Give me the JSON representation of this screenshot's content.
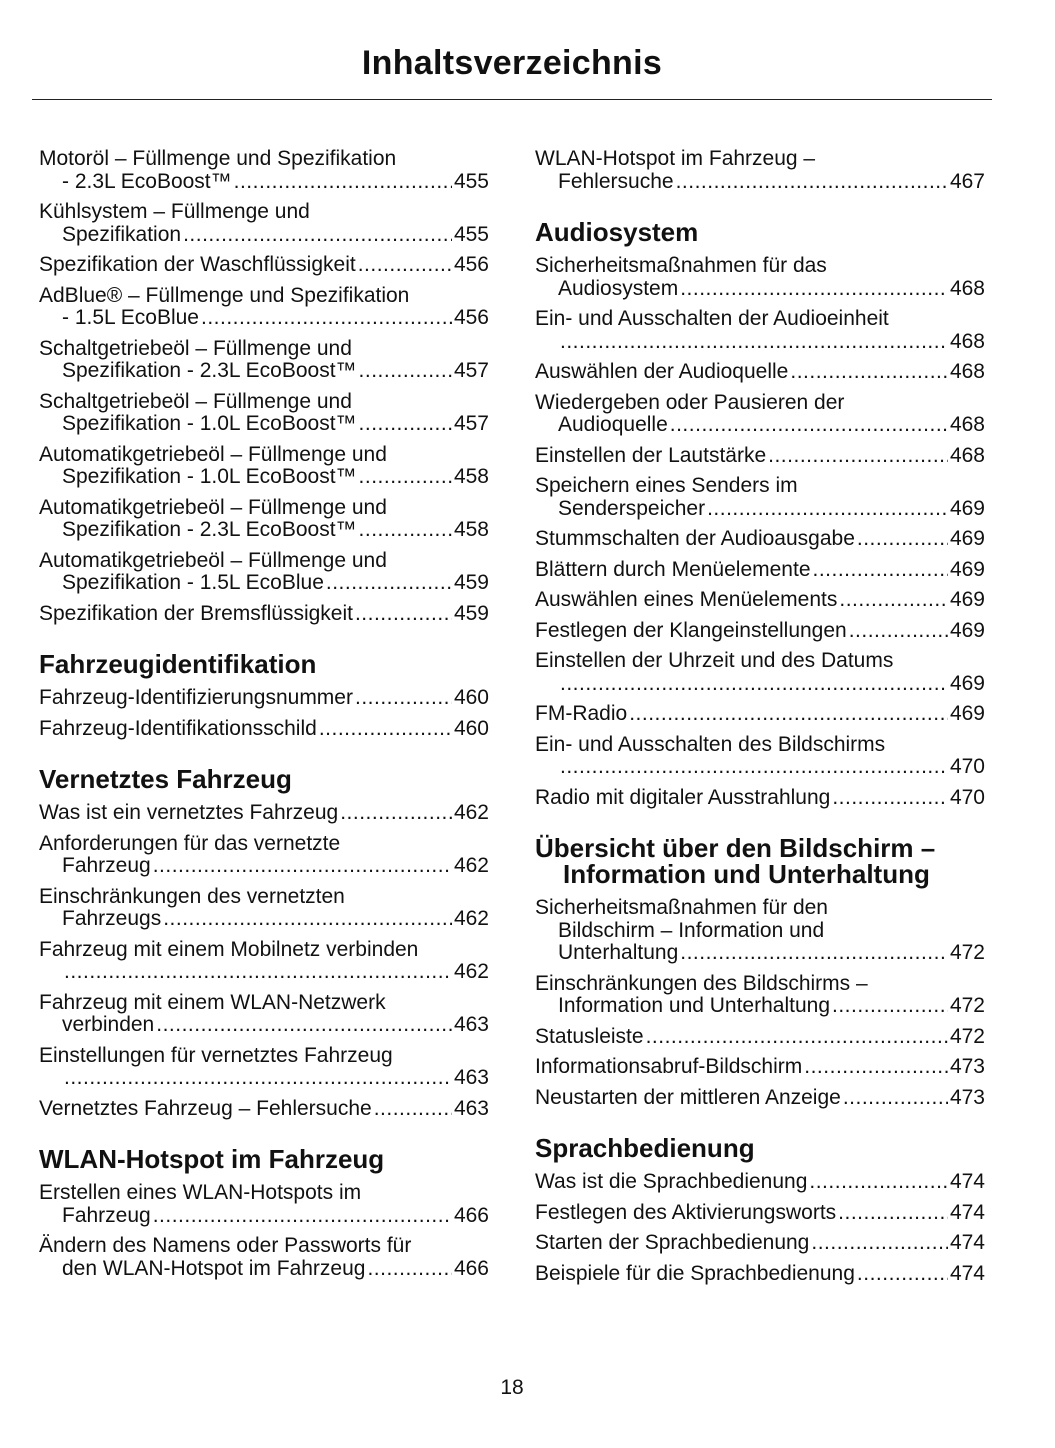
{
  "title": "Inhaltsverzeichnis",
  "page_number": "18",
  "columns": [
    [
      {
        "type": "entry",
        "lines": [
          "Motoröl – Füllmenge und Spezifikation",
          "- 2.3L EcoBoost™"
        ],
        "page": "455"
      },
      {
        "type": "entry",
        "lines": [
          "Kühlsystem – Füllmenge und",
          "Spezifikation"
        ],
        "page": "455"
      },
      {
        "type": "entry",
        "lines": [
          "Spezifikation der Waschflüssigkeit"
        ],
        "page": "456"
      },
      {
        "type": "entry",
        "lines": [
          "AdBlue® – Füllmenge und Spezifikation",
          "- 1.5L EcoBlue"
        ],
        "page": "456"
      },
      {
        "type": "entry",
        "lines": [
          "Schaltgetriebeöl – Füllmenge und",
          "Spezifikation - 2.3L EcoBoost™"
        ],
        "page": "457"
      },
      {
        "type": "entry",
        "lines": [
          "Schaltgetriebeöl – Füllmenge und",
          "Spezifikation - 1.0L EcoBoost™"
        ],
        "page": "457"
      },
      {
        "type": "entry",
        "lines": [
          "Automatikgetriebeöl – Füllmenge und",
          "Spezifikation - 1.0L EcoBoost™"
        ],
        "page": "458"
      },
      {
        "type": "entry",
        "lines": [
          "Automatikgetriebeöl – Füllmenge und",
          "Spezifikation - 2.3L EcoBoost™"
        ],
        "page": "458"
      },
      {
        "type": "entry",
        "lines": [
          "Automatikgetriebeöl – Füllmenge und",
          "Spezifikation - 1.5L EcoBlue"
        ],
        "page": "459"
      },
      {
        "type": "entry",
        "lines": [
          "Spezifikation der Bremsflüssigkeit"
        ],
        "page": "459"
      },
      {
        "type": "heading",
        "text": "Fahrzeugidentifikation"
      },
      {
        "type": "entry",
        "lines": [
          "Fahrzeug-Identifizierungsnummer"
        ],
        "page": "460"
      },
      {
        "type": "entry",
        "lines": [
          "Fahrzeug-Identifikationsschild"
        ],
        "page": "460"
      },
      {
        "type": "heading",
        "text": "Vernetztes Fahrzeug"
      },
      {
        "type": "entry",
        "lines": [
          "Was ist ein vernetztes Fahrzeug"
        ],
        "page": "462"
      },
      {
        "type": "entry",
        "lines": [
          "Anforderungen für das vernetzte",
          "Fahrzeug"
        ],
        "page": "462"
      },
      {
        "type": "entry",
        "lines": [
          "Einschränkungen des vernetzten",
          "Fahrzeugs"
        ],
        "page": "462"
      },
      {
        "type": "entry",
        "lines": [
          "Fahrzeug mit einem Mobilnetz verbinden",
          ""
        ],
        "page": "462"
      },
      {
        "type": "entry",
        "lines": [
          "Fahrzeug mit einem WLAN-Netzwerk",
          "verbinden"
        ],
        "page": "463"
      },
      {
        "type": "entry",
        "lines": [
          "Einstellungen für vernetztes Fahrzeug",
          ""
        ],
        "page": "463"
      },
      {
        "type": "entry",
        "lines": [
          "Vernetztes Fahrzeug – Fehlersuche"
        ],
        "page": "463"
      },
      {
        "type": "heading",
        "text": "WLAN-Hotspot im Fahrzeug"
      },
      {
        "type": "entry",
        "lines": [
          "Erstellen eines WLAN-Hotspots im",
          "Fahrzeug"
        ],
        "page": "466"
      },
      {
        "type": "entry",
        "lines": [
          "Ändern des Namens oder Passworts für",
          "den WLAN-Hotspot im Fahrzeug"
        ],
        "page": "466"
      }
    ],
    [
      {
        "type": "entry",
        "lines": [
          "WLAN-Hotspot im Fahrzeug –",
          "Fehlersuche"
        ],
        "page": "467"
      },
      {
        "type": "heading",
        "text": "Audiosystem"
      },
      {
        "type": "entry",
        "lines": [
          "Sicherheitsmaßnahmen für das",
          "Audiosystem"
        ],
        "page": "468"
      },
      {
        "type": "entry",
        "lines": [
          "Ein- und Ausschalten der Audioeinheit",
          ""
        ],
        "page": "468"
      },
      {
        "type": "entry",
        "lines": [
          "Auswählen der Audioquelle"
        ],
        "page": "468"
      },
      {
        "type": "entry",
        "lines": [
          "Wiedergeben oder Pausieren der",
          "Audioquelle"
        ],
        "page": "468"
      },
      {
        "type": "entry",
        "lines": [
          "Einstellen der Lautstärke"
        ],
        "page": "468"
      },
      {
        "type": "entry",
        "lines": [
          "Speichern eines Senders im",
          "Senderspeicher"
        ],
        "page": "469"
      },
      {
        "type": "entry",
        "lines": [
          "Stummschalten der Audioausgabe"
        ],
        "page": "469"
      },
      {
        "type": "entry",
        "lines": [
          "Blättern durch Menüelemente"
        ],
        "page": "469"
      },
      {
        "type": "entry",
        "lines": [
          "Auswählen eines Menüelements"
        ],
        "page": "469"
      },
      {
        "type": "entry",
        "lines": [
          "Festlegen der Klangeinstellungen"
        ],
        "page": "469"
      },
      {
        "type": "entry",
        "lines": [
          "Einstellen der Uhrzeit und des Datums",
          ""
        ],
        "page": "469"
      },
      {
        "type": "entry",
        "lines": [
          "FM-Radio"
        ],
        "page": "469"
      },
      {
        "type": "entry",
        "lines": [
          "Ein- und Ausschalten des Bildschirms",
          ""
        ],
        "page": "470"
      },
      {
        "type": "entry",
        "lines": [
          "Radio mit digitaler Ausstrahlung"
        ],
        "page": "470"
      },
      {
        "type": "heading",
        "text": "Übersicht über den Bildschirm – Information und Unterhaltung"
      },
      {
        "type": "entry",
        "lines": [
          "Sicherheitsmaßnahmen für den",
          "Bildschirm – Information und",
          "Unterhaltung"
        ],
        "page": "472"
      },
      {
        "type": "entry",
        "lines": [
          "Einschränkungen des Bildschirms –",
          "Information und Unterhaltung"
        ],
        "page": "472"
      },
      {
        "type": "entry",
        "lines": [
          "Statusleiste"
        ],
        "page": "472"
      },
      {
        "type": "entry",
        "lines": [
          "Informationsabruf-Bildschirm"
        ],
        "page": "473"
      },
      {
        "type": "entry",
        "lines": [
          "Neustarten der mittleren Anzeige"
        ],
        "page": "473"
      },
      {
        "type": "heading",
        "text": "Sprachbedienung"
      },
      {
        "type": "entry",
        "lines": [
          "Was ist die Sprachbedienung"
        ],
        "page": "474"
      },
      {
        "type": "entry",
        "lines": [
          "Festlegen des Aktivierungsworts"
        ],
        "page": "474"
      },
      {
        "type": "entry",
        "lines": [
          "Starten der Sprachbedienung"
        ],
        "page": "474"
      },
      {
        "type": "entry",
        "lines": [
          "Beispiele für die Sprachbedienung"
        ],
        "page": "474"
      }
    ]
  ]
}
